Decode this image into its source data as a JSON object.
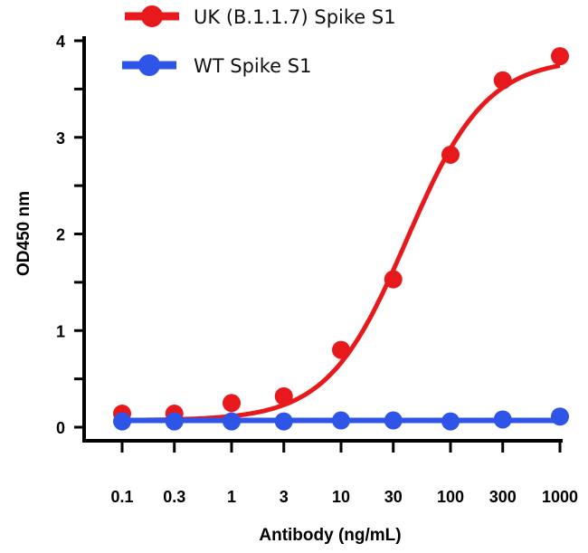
{
  "chart_data": {
    "type": "line",
    "title": "",
    "xlabel": "Antibody (ng/mL)",
    "ylabel": "OD450 nm",
    "x_scale": "log",
    "x": [
      0.1,
      0.3,
      1,
      3,
      10,
      30,
      100,
      300,
      1000
    ],
    "x_tick_labels": [
      "0.1",
      "0.3",
      "1",
      "3",
      "10",
      "30",
      "100",
      "300",
      "1000"
    ],
    "ylim": [
      0,
      4
    ],
    "y_ticks": [
      0,
      1,
      2,
      3,
      4
    ],
    "y_tick_labels": [
      "0",
      "1",
      "2",
      "3",
      "4"
    ],
    "grid": false,
    "legend_position": "top",
    "series": [
      {
        "name": "UK (B.1.1.7) Spike S1",
        "color": "#e8191c",
        "values": [
          0.14,
          0.14,
          0.25,
          0.32,
          0.8,
          1.53,
          2.82,
          3.59,
          3.84
        ]
      },
      {
        "name": "WT Spike S1",
        "color": "#2f55e8",
        "values": [
          0.06,
          0.06,
          0.06,
          0.06,
          0.07,
          0.07,
          0.06,
          0.08,
          0.11
        ]
      }
    ]
  }
}
